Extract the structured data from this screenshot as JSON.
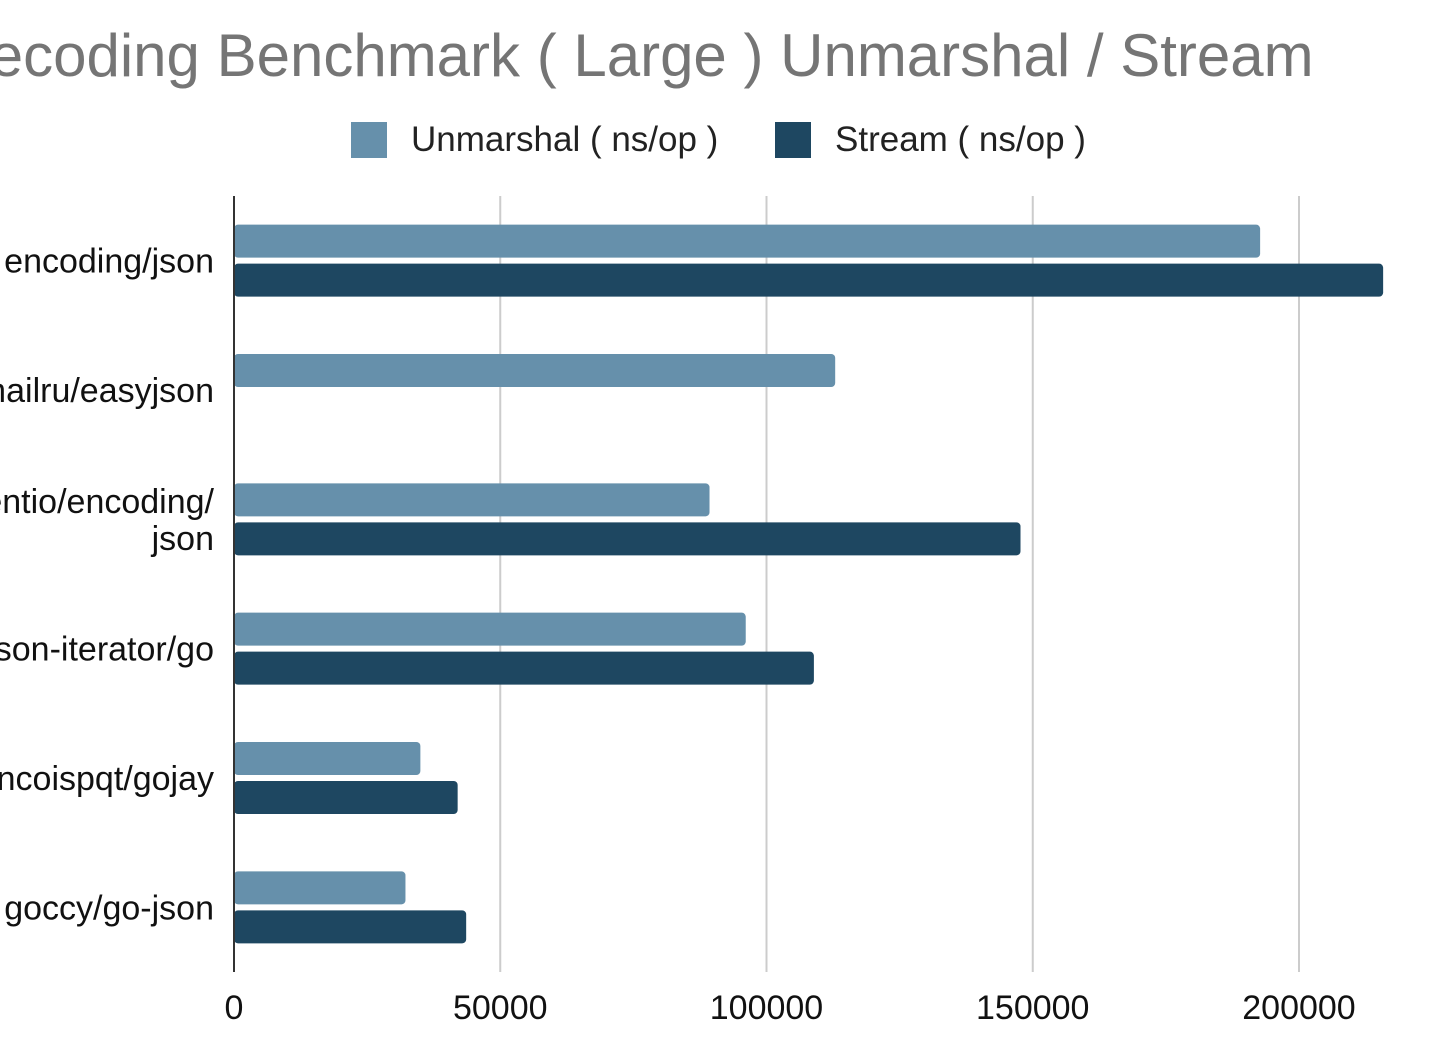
{
  "chart_data": {
    "type": "bar",
    "orientation": "horizontal",
    "title": "Decoding Benchmark ( Large ) Unmarshal / Stream",
    "categories": [
      [
        "encoding/json"
      ],
      [
        "mailru/easyjson"
      ],
      [
        "segmentio/encoding/",
        "json"
      ],
      [
        "json-iterator/go"
      ],
      [
        "francoispqt/gojay"
      ],
      [
        "goccy/go-json"
      ]
    ],
    "series": [
      {
        "name": "Unmarshal ( ns/op )",
        "color": "#6690AB",
        "values": [
          192700,
          112900,
          89300,
          96100,
          35000,
          32200
        ]
      },
      {
        "name": "Stream ( ns/op )",
        "color": "#1E4761",
        "values": [
          215800,
          null,
          147700,
          108900,
          42000,
          43600
        ]
      }
    ],
    "xlim": [
      0,
      220000
    ],
    "xticks": [
      0,
      50000,
      100000,
      150000,
      200000
    ],
    "grid": true,
    "legend_position": "top"
  }
}
